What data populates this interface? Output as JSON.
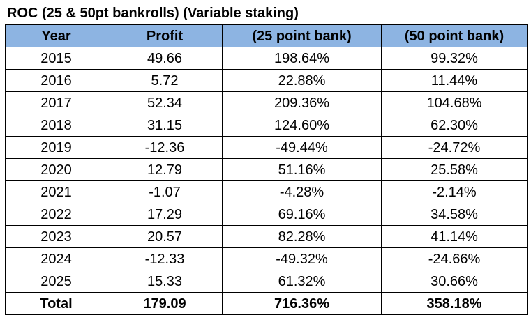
{
  "title": "ROC (25 & 50pt bankrolls) (Variable staking)",
  "header_bg": "#8db4e2",
  "table": {
    "headers": [
      "Year",
      "Profit",
      "(25 point bank)",
      "(50 point bank)"
    ],
    "rows": [
      [
        "2015",
        "49.66",
        "198.64%",
        "99.32%"
      ],
      [
        "2016",
        "5.72",
        "22.88%",
        "11.44%"
      ],
      [
        "2017",
        "52.34",
        "209.36%",
        "104.68%"
      ],
      [
        "2018",
        "31.15",
        "124.60%",
        "62.30%"
      ],
      [
        "2019",
        "-12.36",
        "-49.44%",
        "-24.72%"
      ],
      [
        "2020",
        "12.79",
        "51.16%",
        "25.58%"
      ],
      [
        "2021",
        "-1.07",
        "-4.28%",
        "-2.14%"
      ],
      [
        "2022",
        "17.29",
        "69.16%",
        "34.58%"
      ],
      [
        "2023",
        "20.57",
        "82.28%",
        "41.14%"
      ],
      [
        "2024",
        "-12.33",
        "-49.32%",
        "-24.66%"
      ],
      [
        "2025",
        "15.33",
        "61.32%",
        "30.66%"
      ]
    ],
    "total": [
      "Total",
      "179.09",
      "716.36%",
      "358.18%"
    ]
  }
}
